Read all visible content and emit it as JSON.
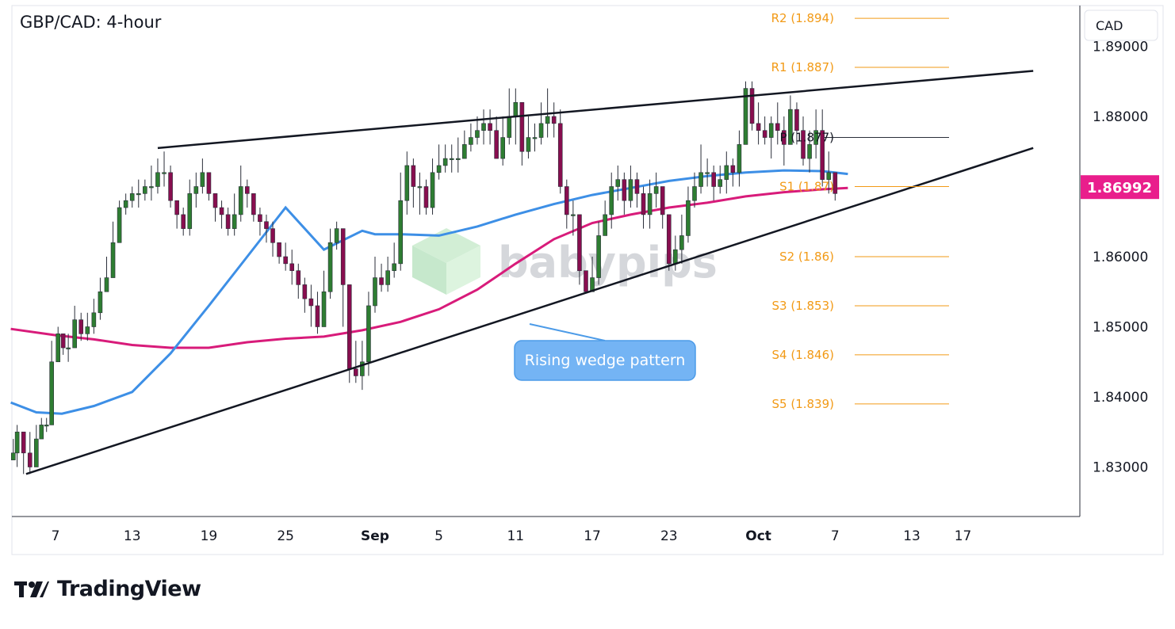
{
  "chart_data": {
    "type": "candlestick",
    "title": "GBP/CAD: 4-hour",
    "currency": "CAD",
    "current_price": "1.86992",
    "y_ticks": [
      "1.89000",
      "1.88000",
      "1.87000",
      "1.86000",
      "1.85000",
      "1.84000",
      "1.83000"
    ],
    "y_tick_values": [
      1.89,
      1.88,
      1.87,
      1.86,
      1.85,
      1.84,
      1.83
    ],
    "x_ticks": [
      "7",
      "13",
      "19",
      "25",
      "Sep",
      "5",
      "11",
      "17",
      "23",
      "Oct",
      "7",
      "13",
      "17"
    ],
    "x_tick_index": [
      0,
      6,
      12,
      18,
      25,
      30,
      36,
      42,
      48,
      55,
      61,
      67,
      71
    ],
    "ylim": [
      1.8215,
      1.8965
    ],
    "pivot_levels": [
      {
        "label": "R2 (1.894)",
        "value": 1.894
      },
      {
        "label": "R1 (1.887)",
        "value": 1.887
      },
      {
        "label": "P (1.877)",
        "value": 1.877
      },
      {
        "label": "S1 (1.87)",
        "value": 1.87
      },
      {
        "label": "S2 (1.86)",
        "value": 1.86
      },
      {
        "label": "S3 (1.853)",
        "value": 1.853
      },
      {
        "label": "S4 (1.846)",
        "value": 1.846
      },
      {
        "label": "S5 (1.839)",
        "value": 1.839
      }
    ],
    "wedge_upper": {
      "start": [
        8.0,
        1.8755
      ],
      "end": [
        76.5,
        1.8865
      ]
    },
    "wedge_lower": {
      "start": [
        -2.3,
        1.829
      ],
      "end": [
        76.5,
        1.8755
      ]
    },
    "annotation": "Rising wedge pattern",
    "watermark": "babypips",
    "ma_fast": {
      "x": [
        -3.5,
        -1.5,
        0.5,
        3,
        6,
        9,
        12,
        15,
        18,
        21,
        24,
        25,
        27,
        30,
        33,
        36,
        39,
        42,
        45,
        48,
        51,
        54,
        57,
        60,
        62
      ],
      "y": [
        1.8392,
        1.8378,
        1.8376,
        1.8387,
        1.8407,
        1.8462,
        1.853,
        1.86,
        1.867,
        1.861,
        1.8637,
        1.8632,
        1.8632,
        1.863,
        1.8643,
        1.866,
        1.8675,
        1.8688,
        1.8698,
        1.8708,
        1.8715,
        1.872,
        1.8723,
        1.8722,
        1.8718
      ]
    },
    "ma_slow": {
      "x": [
        -3.5,
        0,
        3,
        6,
        9,
        12,
        15,
        18,
        21,
        24,
        27,
        30,
        33,
        36,
        39,
        42,
        45,
        48,
        51,
        54,
        57,
        60,
        62
      ],
      "y": [
        1.8497,
        1.8488,
        1.8482,
        1.8474,
        1.847,
        1.847,
        1.8478,
        1.8483,
        1.8486,
        1.8495,
        1.8507,
        1.8525,
        1.8553,
        1.859,
        1.8625,
        1.8648,
        1.866,
        1.867,
        1.8677,
        1.8686,
        1.8692,
        1.8696,
        1.8698
      ]
    },
    "candles_x": [
      -3.3,
      -3.0,
      -2.5,
      -2.0,
      -1.5,
      -1.1,
      -0.7,
      -0.3,
      0.2,
      0.6,
      1.0,
      1.5,
      2.0,
      2.5,
      3.0,
      3.5,
      4.0,
      4.5,
      5.0,
      5.5,
      6.0,
      6.5,
      7.0,
      7.5,
      8.0,
      8.5,
      9.0,
      9.5,
      10.0,
      10.5,
      11.0,
      11.5,
      12.0,
      12.5,
      13.0,
      13.5,
      14.0,
      14.5,
      15.0,
      15.5,
      16.0,
      16.5,
      17.0,
      17.5,
      18.0,
      18.5,
      19.0,
      19.5,
      20.0,
      20.5,
      21.0,
      21.5,
      22.0,
      22.5,
      23.0,
      23.5,
      24.0,
      24.5,
      25.0,
      25.5,
      26.0,
      26.5,
      27.0,
      27.5,
      28.0,
      28.5,
      29.0,
      29.5,
      30.0,
      30.5,
      31.0,
      31.5,
      32.0,
      32.5,
      33.0,
      33.5,
      34.0,
      34.5,
      35.0,
      35.5,
      36.0,
      36.5,
      37.0,
      37.5,
      38.0,
      38.5,
      39.0,
      39.5,
      40.0,
      40.5,
      41.0,
      41.5,
      42.0,
      42.5,
      43.0,
      43.5,
      44.0,
      44.5,
      45.0,
      45.5,
      46.0,
      46.5,
      47.0,
      47.5,
      48.0,
      48.5,
      49.0,
      49.5,
      50.0,
      50.5,
      51.0,
      51.5,
      52.0,
      52.5,
      53.0,
      53.5,
      54.0,
      54.5,
      55.0,
      55.5,
      56.0,
      56.5,
      57.0,
      57.5,
      58.0,
      58.5,
      59.0,
      59.5,
      60.0,
      60.5,
      61.0,
      61.5,
      62.0
    ],
    "closes": [
      1.832,
      1.835,
      1.832,
      1.83,
      1.834,
      1.836,
      1.836,
      1.845,
      1.849,
      1.847,
      1.847,
      1.851,
      1.849,
      1.85,
      1.852,
      1.855,
      1.857,
      1.862,
      1.867,
      1.868,
      1.869,
      1.869,
      1.87,
      1.87,
      1.872,
      1.872,
      1.868,
      1.866,
      1.864,
      1.869,
      1.87,
      1.872,
      1.869,
      1.867,
      1.866,
      1.864,
      1.866,
      1.87,
      1.869,
      1.866,
      1.865,
      1.864,
      1.862,
      1.86,
      1.859,
      1.858,
      1.856,
      1.854,
      1.853,
      1.85,
      1.855,
      1.862,
      1.864,
      1.856,
      1.844,
      1.843,
      1.845,
      1.853,
      1.857,
      1.856,
      1.858,
      1.859,
      1.868,
      1.873,
      1.87,
      1.87,
      1.867,
      1.872,
      1.873,
      1.874,
      1.874,
      1.874,
      1.876,
      1.877,
      1.878,
      1.879,
      1.878,
      1.874,
      1.877,
      1.88,
      1.882,
      1.875,
      1.877,
      1.877,
      1.879,
      1.88,
      1.879,
      1.87,
      1.866,
      1.866,
      1.858,
      1.855,
      1.857,
      1.863,
      1.866,
      1.87,
      1.871,
      1.868,
      1.871,
      1.869,
      1.866,
      1.869,
      1.87,
      1.866,
      1.859,
      1.861,
      1.863,
      1.868,
      1.87,
      1.872,
      1.872,
      1.87,
      1.871,
      1.873,
      1.872,
      1.876,
      1.884,
      1.879,
      1.878,
      1.877,
      1.879,
      1.878,
      1.876,
      1.881,
      1.878,
      1.874,
      1.876,
      1.878,
      1.871,
      1.872,
      1.869
    ],
    "highs": [
      1.834,
      1.836,
      1.834,
      1.835,
      1.836,
      1.837,
      1.837,
      1.848,
      1.85,
      1.849,
      1.849,
      1.853,
      1.852,
      1.852,
      1.854,
      1.857,
      1.86,
      1.865,
      1.868,
      1.869,
      1.87,
      1.871,
      1.871,
      1.873,
      1.874,
      1.875,
      1.873,
      1.868,
      1.867,
      1.871,
      1.872,
      1.874,
      1.872,
      1.869,
      1.868,
      1.867,
      1.869,
      1.873,
      1.871,
      1.869,
      1.867,
      1.866,
      1.865,
      1.862,
      1.862,
      1.861,
      1.859,
      1.857,
      1.856,
      1.855,
      1.858,
      1.864,
      1.865,
      1.863,
      1.853,
      1.848,
      1.848,
      1.855,
      1.86,
      1.859,
      1.86,
      1.862,
      1.872,
      1.875,
      1.874,
      1.872,
      1.871,
      1.874,
      1.876,
      1.876,
      1.876,
      1.877,
      1.878,
      1.879,
      1.88,
      1.881,
      1.881,
      1.88,
      1.88,
      1.884,
      1.884,
      1.882,
      1.88,
      1.879,
      1.882,
      1.884,
      1.882,
      1.881,
      1.871,
      1.868,
      1.866,
      1.858,
      1.86,
      1.865,
      1.868,
      1.872,
      1.873,
      1.872,
      1.873,
      1.872,
      1.87,
      1.871,
      1.872,
      1.87,
      1.866,
      1.863,
      1.866,
      1.87,
      1.872,
      1.876,
      1.874,
      1.873,
      1.873,
      1.875,
      1.874,
      1.878,
      1.885,
      1.885,
      1.882,
      1.88,
      1.88,
      1.882,
      1.88,
      1.883,
      1.882,
      1.88,
      1.878,
      1.881,
      1.881,
      1.875,
      1.872
    ],
    "lows": [
      1.831,
      1.83,
      1.829,
      1.829,
      1.83,
      1.834,
      1.835,
      1.836,
      1.845,
      1.846,
      1.845,
      1.847,
      1.848,
      1.848,
      1.849,
      1.851,
      1.855,
      1.857,
      1.862,
      1.866,
      1.867,
      1.867,
      1.868,
      1.868,
      1.869,
      1.87,
      1.867,
      1.864,
      1.863,
      1.863,
      1.867,
      1.869,
      1.868,
      1.865,
      1.864,
      1.863,
      1.863,
      1.865,
      1.867,
      1.865,
      1.863,
      1.862,
      1.86,
      1.859,
      1.858,
      1.856,
      1.854,
      1.852,
      1.85,
      1.849,
      1.85,
      1.854,
      1.861,
      1.85,
      1.842,
      1.842,
      1.841,
      1.843,
      1.852,
      1.855,
      1.855,
      1.857,
      1.858,
      1.866,
      1.867,
      1.866,
      1.866,
      1.866,
      1.871,
      1.872,
      1.872,
      1.872,
      1.874,
      1.875,
      1.876,
      1.876,
      1.876,
      1.874,
      1.873,
      1.876,
      1.876,
      1.873,
      1.874,
      1.875,
      1.876,
      1.877,
      1.877,
      1.869,
      1.864,
      1.863,
      1.856,
      1.855,
      1.855,
      1.856,
      1.863,
      1.864,
      1.868,
      1.866,
      1.867,
      1.867,
      1.864,
      1.864,
      1.867,
      1.864,
      1.858,
      1.858,
      1.859,
      1.862,
      1.867,
      1.869,
      1.87,
      1.868,
      1.869,
      1.869,
      1.87,
      1.87,
      1.876,
      1.878,
      1.876,
      1.876,
      1.874,
      1.876,
      1.873,
      1.876,
      1.876,
      1.873,
      1.872,
      1.874,
      1.87,
      1.869,
      1.868
    ]
  }
}
